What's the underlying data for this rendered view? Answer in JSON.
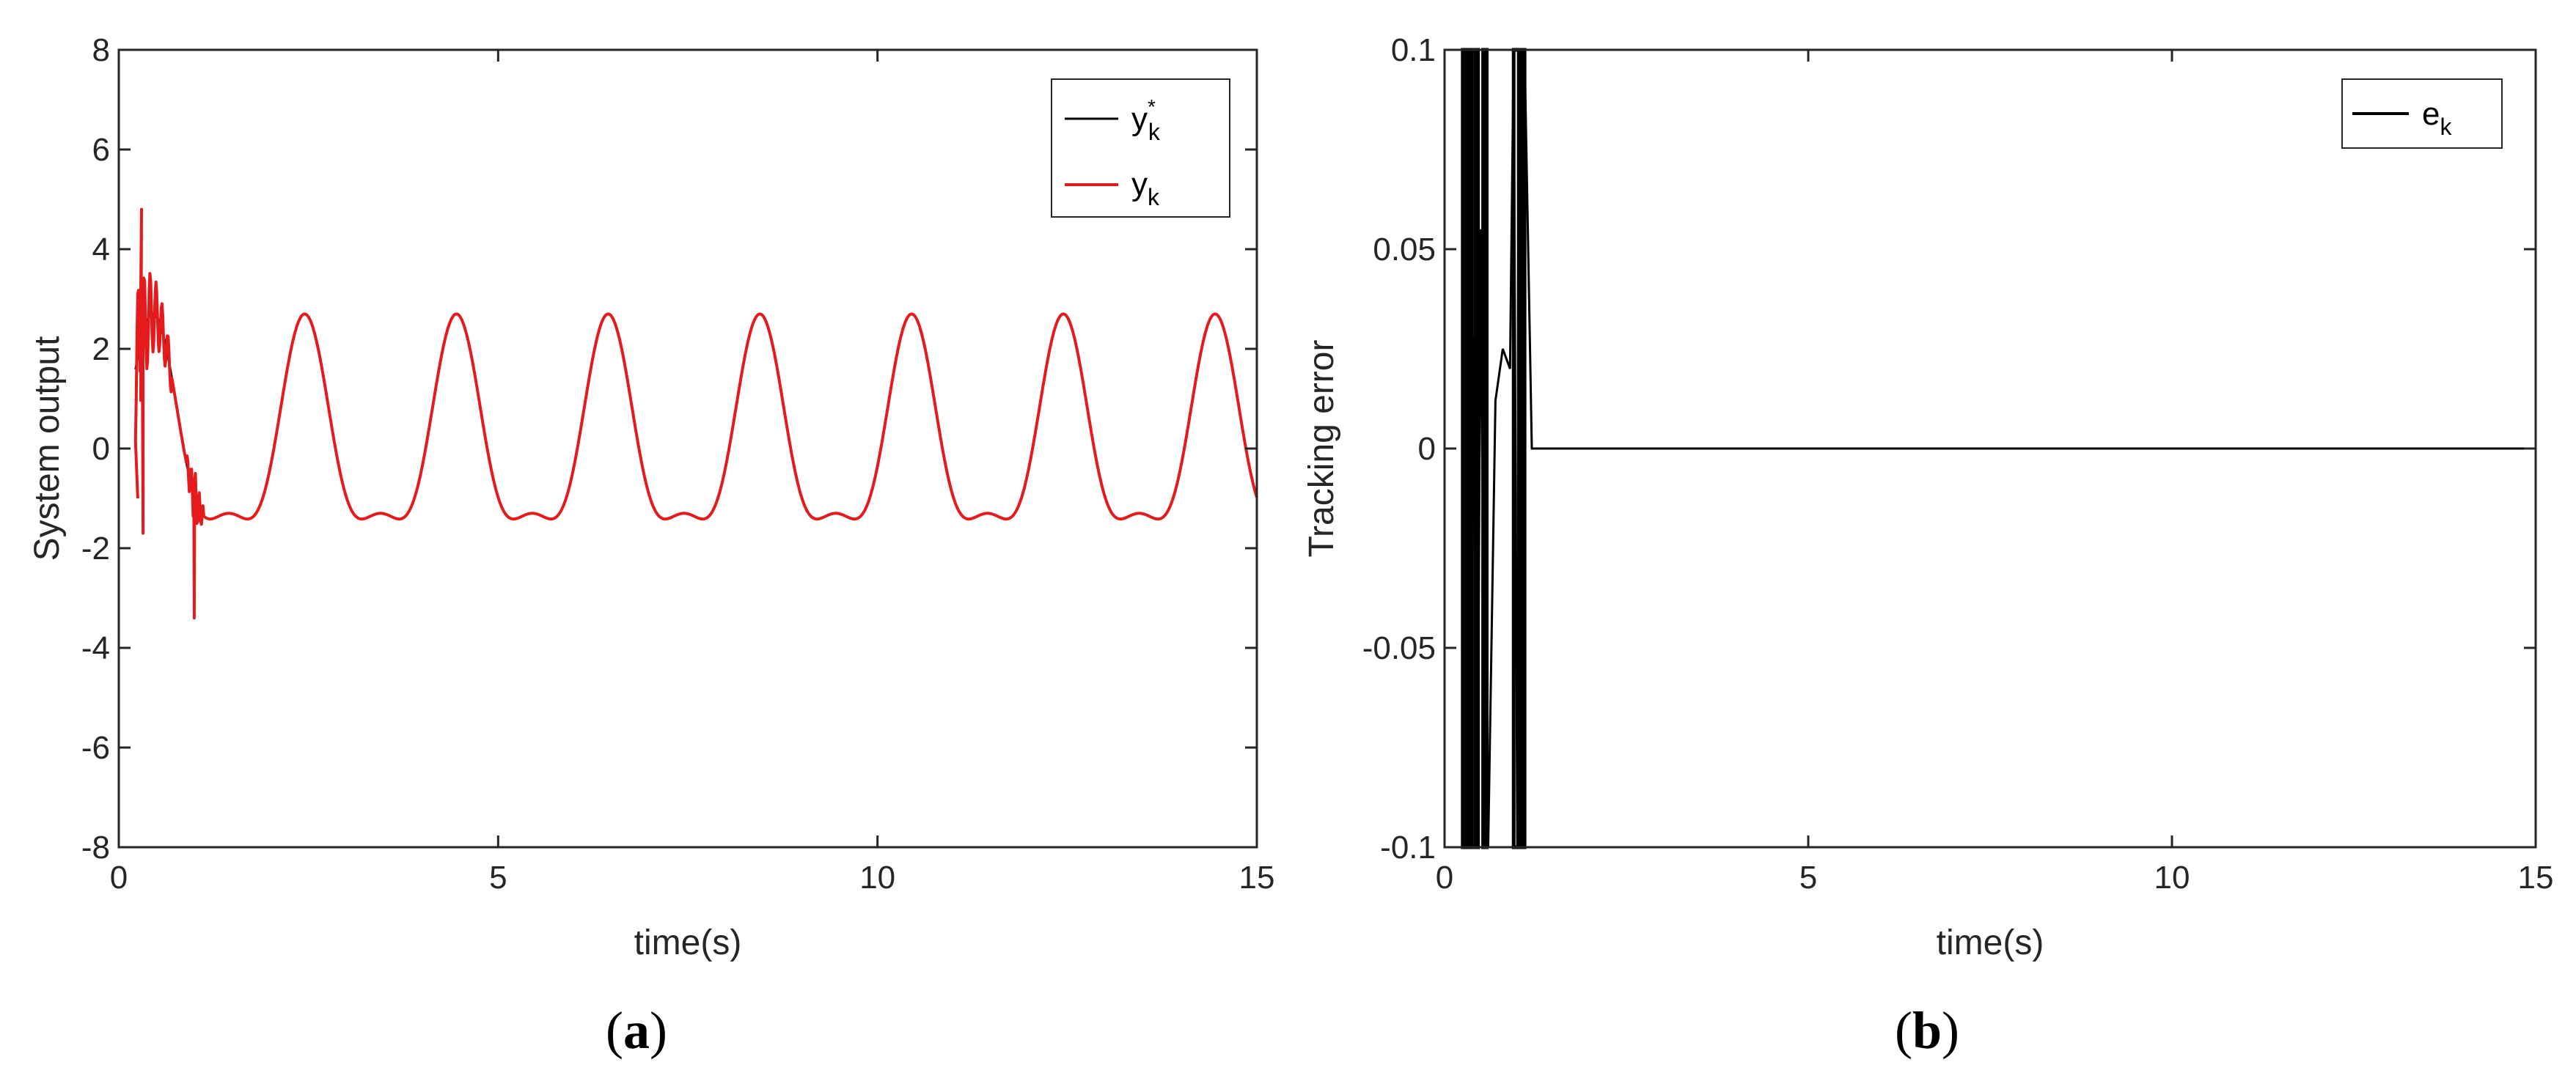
{
  "chart_data": [
    {
      "type": "line",
      "panel_label": "a",
      "xlabel": "time(s)",
      "ylabel": "System output",
      "xlim": [
        0,
        15
      ],
      "ylim": [
        -8,
        8
      ],
      "xticks": [
        "0",
        "5",
        "10",
        "15"
      ],
      "yticks": [
        "8",
        "6",
        "4",
        "2",
        "0",
        "-2",
        "-4",
        "-6",
        "-8"
      ],
      "grid": false,
      "legend_position": "top-right",
      "series": [
        {
          "name": "y*k",
          "color": "#000000",
          "description": "reference: 2*sin(pi*t) + 1*sin(2*pi*t) style periodic signal, amplitude peaks ~2.7 and ~1.3",
          "x": [
            0.25,
            0.5,
            1.0,
            1.5,
            2.0,
            2.45,
            3.0,
            3.5,
            4.0,
            4.4,
            5.0,
            5.45,
            6.0,
            6.4,
            7.0,
            7.45,
            8.0,
            8.4,
            9.0,
            9.45,
            10.0,
            10.4,
            11.0,
            11.45,
            12.0,
            12.4,
            13.0,
            13.45,
            14.0,
            14.4,
            15.0
          ],
          "y": [
            2.0,
            2.5,
            -2.7,
            1.3,
            -1.3,
            2.7,
            -2.7,
            1.3,
            -1.3,
            2.7,
            -2.7,
            1.3,
            -1.3,
            2.7,
            -2.7,
            1.3,
            -1.3,
            2.7,
            -2.7,
            1.3,
            -1.3,
            2.7,
            -2.7,
            1.3,
            -1.3,
            2.7,
            -2.7,
            1.3,
            -1.3,
            2.7,
            -1.0
          ]
        },
        {
          "name": "yk",
          "color": "#e41a1c",
          "description": "system output, transient spikes near t=0.3 (up to ~4.8) and t=1.0 (down to ~-3.4), then tracks reference",
          "x": [
            0.25,
            0.3,
            0.35,
            0.4,
            0.5,
            0.6,
            1.0,
            1.05,
            1.5,
            2.0,
            2.45,
            15.0
          ],
          "y": [
            -1.0,
            4.8,
            -1.7,
            2.5,
            2.9,
            2.3,
            -3.4,
            -2.4,
            1.3,
            -1.3,
            2.7,
            -1.0
          ]
        }
      ]
    },
    {
      "type": "line",
      "panel_label": "b",
      "xlabel": "time(s)",
      "ylabel": "Tracking error",
      "xlim": [
        0,
        15
      ],
      "ylim": [
        -0.1,
        0.1
      ],
      "xticks": [
        "0",
        "5",
        "10",
        "15"
      ],
      "yticks": [
        "0.1",
        "0.05",
        "0",
        "-0.05",
        "-0.1"
      ],
      "grid": false,
      "legend_position": "top-right",
      "series": [
        {
          "name": "ek",
          "color": "#000000",
          "x": [
            0.25,
            0.3,
            0.35,
            0.4,
            0.45,
            0.5,
            0.55,
            0.6,
            0.7,
            0.8,
            0.9,
            0.95,
            1.0,
            1.05,
            1.1,
            1.2,
            15.0
          ],
          "y": [
            -0.1,
            0.1,
            -0.1,
            0.028,
            -0.1,
            0.055,
            -0.1,
            -0.1,
            0.012,
            0.025,
            0.02,
            0.1,
            -0.1,
            0.1,
            0.1,
            0.0,
            0.0
          ]
        }
      ]
    }
  ],
  "legend_a": [
    {
      "base": "y",
      "sup": "*",
      "sub": "k"
    },
    {
      "base": "y",
      "sup": "",
      "sub": "k"
    }
  ],
  "legend_b": [
    {
      "base": "e",
      "sup": "",
      "sub": "k"
    }
  ]
}
